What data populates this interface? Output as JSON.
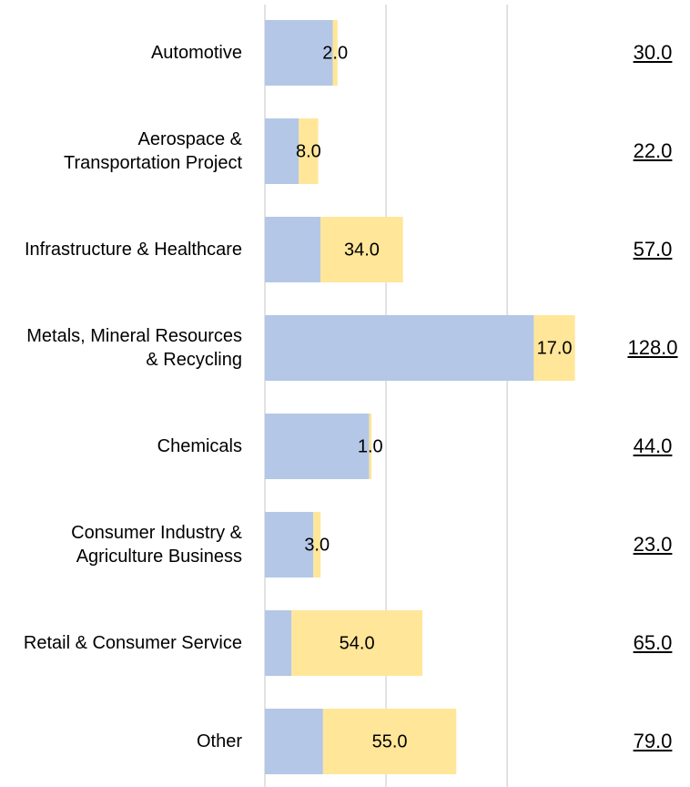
{
  "chart_data": {
    "type": "stacked_bar_horizontal",
    "categories": [
      "Automotive",
      "Aerospace & Transportation Project",
      "Infrastructure & Healthcare",
      "Metals, Mineral Resources & Recycling",
      "Chemicals",
      "Consumer Industry & Agriculture Business",
      "Retail & Consumer Service",
      "Other"
    ],
    "series": [
      {
        "color": "#b4c7e7",
        "values": [
          28,
          14,
          23,
          111,
          43,
          20,
          11,
          24
        ]
      },
      {
        "color": "#ffe699",
        "values": [
          2,
          8,
          34,
          17,
          1,
          3,
          54,
          55
        ],
        "value_labels": [
          "2.0",
          "8.0",
          "34.0",
          "17.0",
          "1.0",
          "3.0",
          "54.0",
          "55.0"
        ]
      }
    ],
    "totals": [
      30,
      22,
      57,
      128,
      44,
      23,
      65,
      79
    ],
    "total_labels": [
      "30.0",
      "22.0",
      "57.0",
      "128.0",
      "44.0",
      "23.0",
      "65.0",
      "79.0"
    ],
    "xlim": [
      0,
      130
    ],
    "xticks": [
      0,
      50,
      100
    ],
    "grid": true
  }
}
